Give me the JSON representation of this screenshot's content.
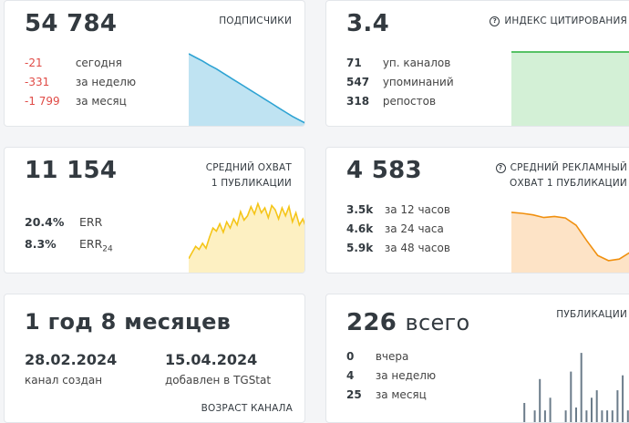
{
  "subscribers": {
    "value": "54 784",
    "title": "ПОДПИСЧИКИ",
    "rows": [
      {
        "value": "-21",
        "label": "сегодня"
      },
      {
        "value": "-331",
        "label": "за неделю"
      },
      {
        "value": "-1 799",
        "label": "за месяц"
      }
    ],
    "sparkline": [
      1.0,
      0.95,
      0.9,
      0.84,
      0.79,
      0.73,
      0.67,
      0.61,
      0.55,
      0.49,
      0.43,
      0.37,
      0.31,
      0.25,
      0.19,
      0.13,
      0.08,
      0.03
    ],
    "color": "#2ea3d3",
    "fill": "#bfe3f2"
  },
  "citation": {
    "value": "3.4",
    "title": "ИНДЕКС ЦИТИРОВАНИЯ",
    "rows": [
      {
        "value": "71",
        "label": "уп. каналов"
      },
      {
        "value": "547",
        "label": "упоминаний"
      },
      {
        "value": "318",
        "label": "репостов"
      }
    ],
    "sparkline": [
      1.0,
      1.0,
      1.0,
      1.0,
      1.0,
      1.0
    ],
    "color": "#27b03a",
    "fill": "#d3f0d6"
  },
  "reach": {
    "value": "11 154",
    "title_line1": "СРЕДНИЙ ОХВАТ",
    "title_line2": "1 ПУБЛИКАЦИИ",
    "err_value": "20.4%",
    "err_label": "ERR",
    "err24_value": "8.3%",
    "err24_label": "ERR",
    "err24_sub": "24",
    "sparkline": [
      0.05,
      0.15,
      0.25,
      0.2,
      0.3,
      0.22,
      0.4,
      0.55,
      0.5,
      0.62,
      0.48,
      0.65,
      0.55,
      0.7,
      0.6,
      0.82,
      0.68,
      0.75,
      0.9,
      0.78,
      0.95,
      0.8,
      0.88,
      0.72,
      0.92,
      0.85,
      0.7,
      0.88,
      0.75,
      0.9,
      0.65,
      0.8,
      0.6,
      0.7,
      0.55
    ],
    "color": "#f5c518",
    "fill": "#fdf0c2"
  },
  "adreach": {
    "value": "4 583",
    "title_line1": "СРЕДНИЙ РЕКЛАМНЫЙ",
    "title_line2": "ОХВАТ 1 ПУБЛИКАЦИИ",
    "rows": [
      {
        "value": "3.5k",
        "label": "за 12 часов"
      },
      {
        "value": "4.6k",
        "label": "за 24 часа"
      },
      {
        "value": "5.9k",
        "label": "за 48 часов"
      }
    ],
    "sparkline": [
      0.95,
      0.93,
      0.9,
      0.85,
      0.87,
      0.84,
      0.7,
      0.4,
      0.12,
      0.02,
      0.05,
      0.18,
      0.22
    ],
    "color": "#f0900f",
    "fill": "#fde3c6"
  },
  "age": {
    "value": "1 год 8 месяцев",
    "created_date": "28.02.2024",
    "created_label": "канал создан",
    "added_date": "15.04.2024",
    "added_label": "добавлен в TGStat",
    "title": "ВОЗРАСТ КАНАЛА"
  },
  "posts": {
    "value": "226",
    "unit": "всего",
    "title": "ПУБЛИКАЦИИ",
    "rows": [
      {
        "value": "0",
        "label": "вчера"
      },
      {
        "value": "4",
        "label": "за неделю"
      },
      {
        "value": "25",
        "label": "за месяц"
      }
    ],
    "bars": [
      0,
      0,
      0.28,
      0,
      0.18,
      0.6,
      0.18,
      0.35,
      0,
      0,
      0.18,
      0.7,
      0.22,
      0.95,
      0.18,
      0.35,
      0.45,
      0.18,
      0.18,
      0.18,
      0.45,
      0.65,
      0.18,
      0,
      0
    ],
    "color": "#6b7c8a"
  }
}
